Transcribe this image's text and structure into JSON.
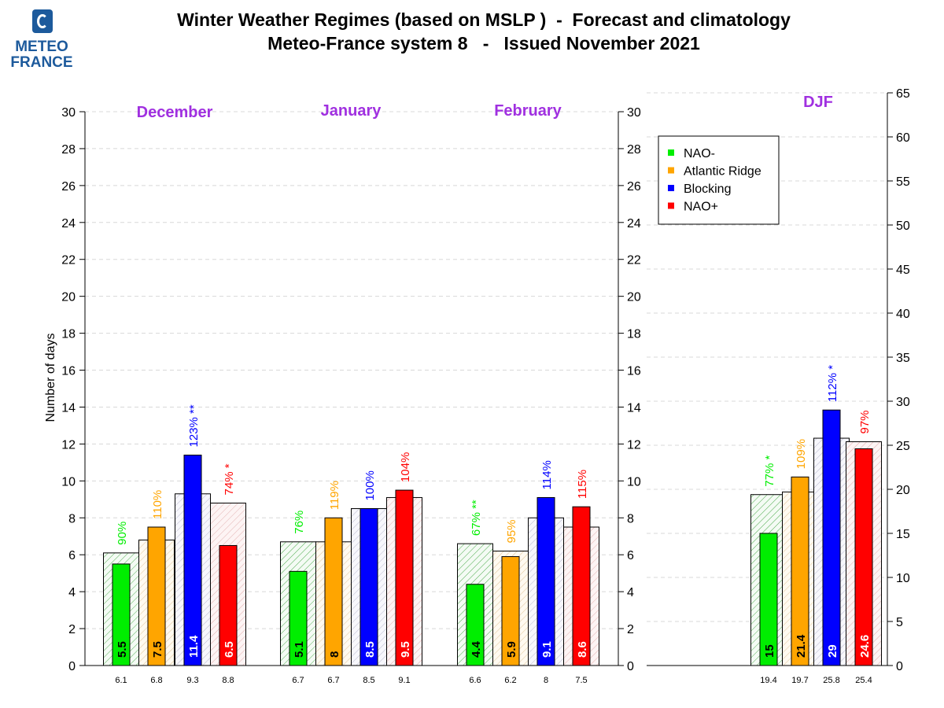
{
  "logo": {
    "line1": "METEO",
    "line2": "FRANCE"
  },
  "header": {
    "title": "Winter Weather Regimes (based on MSLP )  -  Forecast and climatology",
    "subtitle": "Meteo-France system 8   -   Issued November 2021"
  },
  "chart_data": {
    "type": "bar",
    "ylabel": "Number of days",
    "left_axis": {
      "ylim": [
        0,
        30
      ],
      "ticks": [
        "0",
        "2",
        "4",
        "6",
        "8",
        "10",
        "12",
        "14",
        "16",
        "18",
        "20",
        "22",
        "24",
        "26",
        "28",
        "30"
      ]
    },
    "right_axis": {
      "ylim": [
        0,
        65
      ],
      "ticks": [
        "0",
        "5",
        "10",
        "15",
        "20",
        "25",
        "30",
        "35",
        "40",
        "45",
        "50",
        "55",
        "60",
        "65"
      ]
    },
    "grid": true,
    "legend_position": "top-right",
    "series_names": [
      "NAO-",
      "Atlantic Ridge",
      "Blocking",
      "NAO+"
    ],
    "colors": {
      "NAO-": "#00ee00",
      "Atlantic Ridge": "#ffa500",
      "Blocking": "#0000ff",
      "NAO+": "#ff0000"
    },
    "groups": [
      {
        "label": "December",
        "forecast": [
          "5.5",
          "7.5",
          "11.4",
          "6.5"
        ],
        "climatology": [
          "6.1",
          "6.8",
          "9.3",
          "8.8"
        ],
        "percent": [
          "90%",
          "110%",
          "123% **",
          "74% *"
        ]
      },
      {
        "label": "January",
        "forecast": [
          "5.1",
          "8",
          "8.5",
          "9.5"
        ],
        "climatology": [
          "6.7",
          "6.7",
          "8.5",
          "9.1"
        ],
        "percent": [
          "76%",
          "119%",
          "100%",
          "104%"
        ]
      },
      {
        "label": "February",
        "forecast": [
          "4.4",
          "5.9",
          "9.1",
          "8.6"
        ],
        "climatology": [
          "6.6",
          "6.2",
          "8",
          "7.5"
        ],
        "percent": [
          "67% **",
          "95%",
          "114%",
          "115%"
        ]
      },
      {
        "label": "DJF",
        "forecast": [
          "15",
          "21.4",
          "29",
          "24.6"
        ],
        "climatology": [
          "19.4",
          "19.7",
          "25.8",
          "25.4"
        ],
        "percent": [
          "77% *",
          "109%",
          "112% *",
          "97%"
        ]
      }
    ]
  }
}
